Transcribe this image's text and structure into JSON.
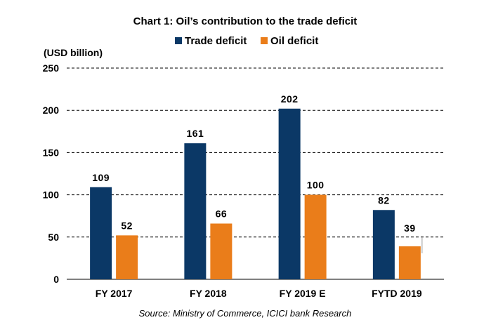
{
  "chart_data": {
    "type": "bar",
    "title": "Chart 1: Oil’s contribution to the trade deficit",
    "ylabel": "(USD billion)",
    "categories": [
      "FY 2017",
      "FY 2018",
      "FY 2019 E",
      "FYTD 2019"
    ],
    "series": [
      {
        "name": "Trade deficit",
        "color": "#0b3866",
        "values": [
          109,
          161,
          202,
          82
        ]
      },
      {
        "name": "Oil deficit",
        "color": "#ea7d1a",
        "values": [
          52,
          66,
          100,
          39
        ]
      }
    ],
    "ylim": [
      0,
      250
    ],
    "yticks": [
      0,
      50,
      100,
      150,
      200,
      250
    ],
    "grid": "dashed horizontal",
    "legend_position": "top",
    "source": "Source: Ministry of Commerce, ICICI bank Research"
  }
}
